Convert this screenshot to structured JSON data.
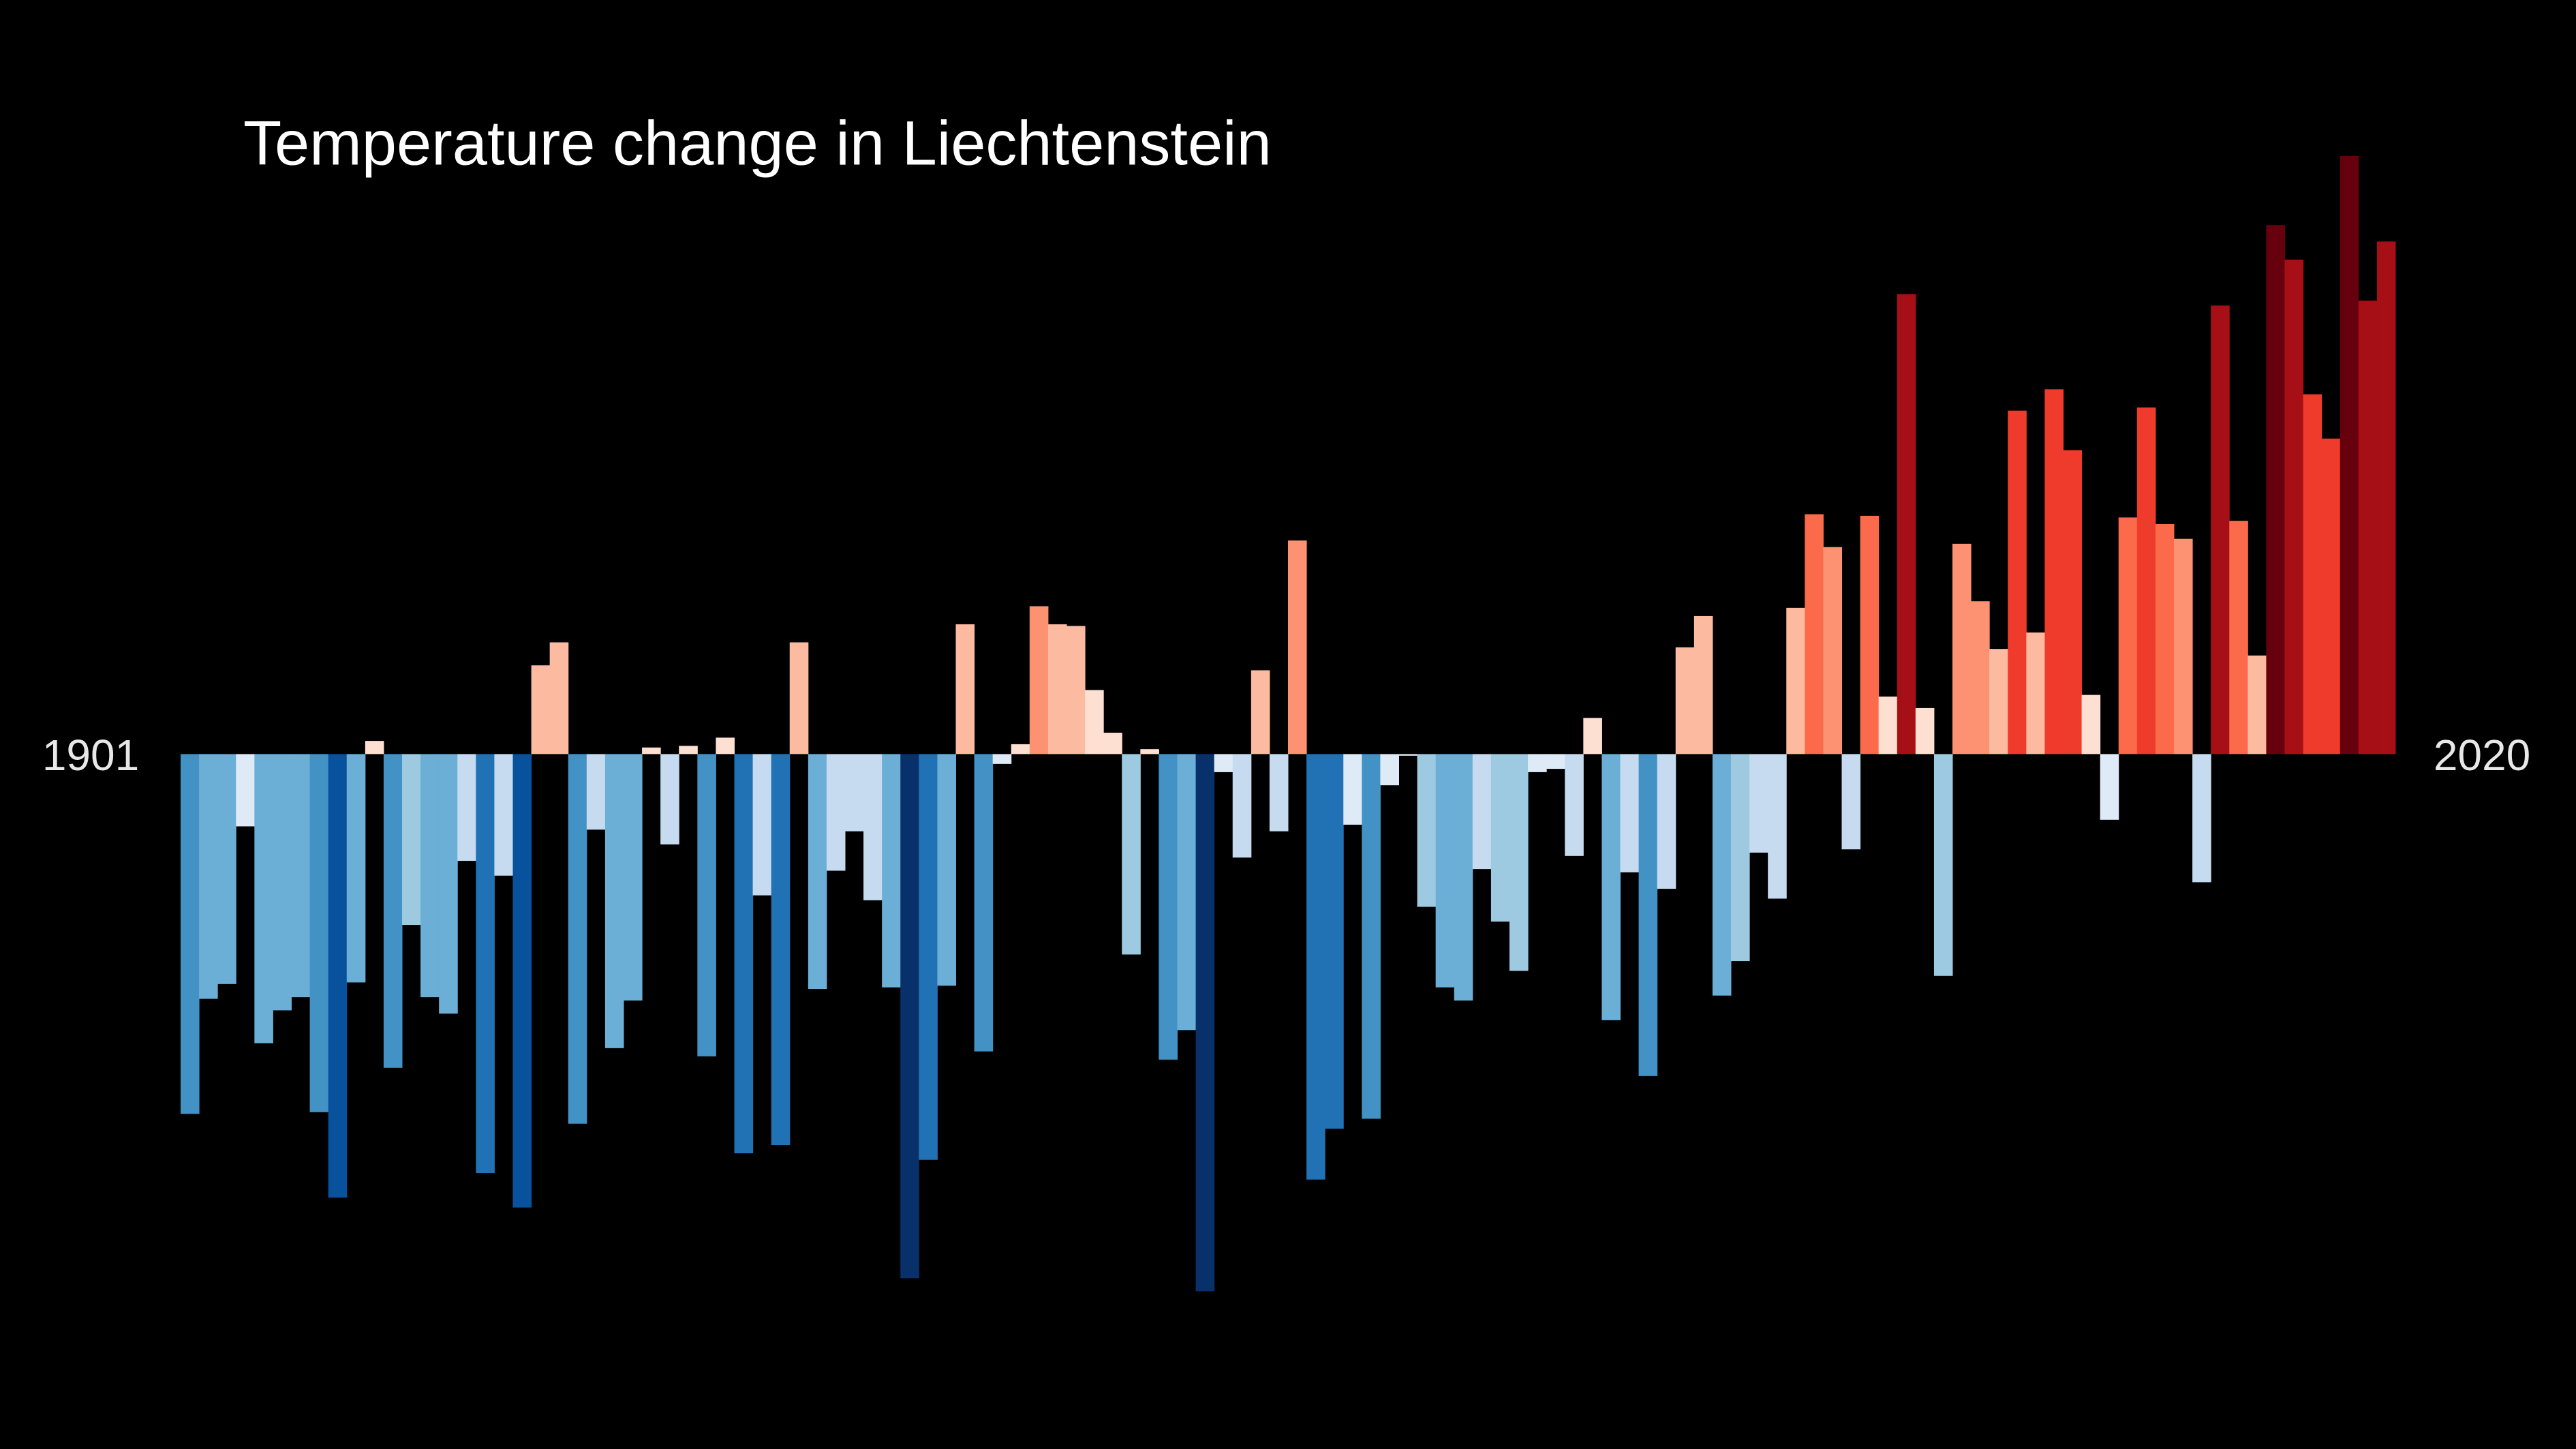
{
  "chart_data": {
    "type": "bar",
    "title": "Temperature change in Liechtenstein",
    "x": [
      1901,
      1902,
      1903,
      1904,
      1905,
      1906,
      1907,
      1908,
      1909,
      1910,
      1911,
      1912,
      1913,
      1914,
      1915,
      1916,
      1917,
      1918,
      1919,
      1920,
      1921,
      1922,
      1923,
      1924,
      1925,
      1926,
      1927,
      1928,
      1929,
      1930,
      1931,
      1932,
      1933,
      1934,
      1935,
      1936,
      1937,
      1938,
      1939,
      1940,
      1941,
      1942,
      1943,
      1944,
      1945,
      1946,
      1947,
      1948,
      1949,
      1950,
      1951,
      1952,
      1953,
      1954,
      1955,
      1956,
      1957,
      1958,
      1959,
      1960,
      1961,
      1962,
      1963,
      1964,
      1965,
      1966,
      1967,
      1968,
      1969,
      1970,
      1971,
      1972,
      1973,
      1974,
      1975,
      1976,
      1977,
      1978,
      1979,
      1980,
      1981,
      1982,
      1983,
      1984,
      1985,
      1986,
      1987,
      1988,
      1989,
      1990,
      1991,
      1992,
      1993,
      1994,
      1995,
      1996,
      1997,
      1998,
      1999,
      2000,
      2001,
      2002,
      2003,
      2004,
      2005,
      2006,
      2007,
      2008,
      2009,
      2010,
      2011,
      2012,
      2013,
      2014,
      2015,
      2016,
      2017,
      2018,
      2019,
      2020
    ],
    "values": [
      -2.19,
      -1.49,
      -1.4,
      -0.44,
      -1.76,
      -1.56,
      -1.48,
      -2.18,
      -2.7,
      -1.39,
      0.08,
      -1.91,
      -1.04,
      -1.48,
      -1.58,
      -0.65,
      -2.55,
      -0.74,
      -2.76,
      0.54,
      0.68,
      -2.25,
      -0.46,
      -1.79,
      -1.5,
      0.04,
      -0.55,
      0.05,
      -1.84,
      0.1,
      -2.43,
      -0.86,
      -2.38,
      0.68,
      -1.43,
      -0.71,
      -0.47,
      -0.89,
      -1.42,
      -3.19,
      -2.47,
      -1.41,
      0.79,
      -1.81,
      -0.06,
      0.06,
      0.9,
      0.79,
      0.78,
      0.39,
      0.13,
      -1.22,
      0.03,
      -1.86,
      -1.68,
      -3.27,
      -0.11,
      -0.63,
      0.51,
      -0.47,
      1.3,
      -2.59,
      -2.28,
      -0.43,
      -2.22,
      -0.19,
      -0.01,
      -0.93,
      -1.42,
      -1.5,
      -0.7,
      -1.02,
      -1.32,
      -0.11,
      -0.09,
      -0.62,
      0.22,
      -1.62,
      -0.72,
      -1.96,
      -0.82,
      0.65,
      0.84,
      -1.47,
      -1.26,
      -0.6,
      -0.88,
      0.89,
      1.46,
      1.26,
      -0.58,
      1.45,
      0.35,
      2.8,
      0.28,
      -1.35,
      1.28,
      0.93,
      0.64,
      2.09,
      0.74,
      2.22,
      1.85,
      0.36,
      -0.4,
      1.44,
      2.11,
      1.4,
      1.31,
      -0.78,
      2.73,
      1.42,
      0.6,
      3.22,
      3.01,
      2.19,
      1.92,
      3.64,
      2.76,
      3.12
    ],
    "xlim": [
      1900.5,
      2020.5
    ],
    "ylim": [
      -4.23,
      4.59
    ],
    "color_range": [
      -3.6,
      3.6
    ],
    "colormap": [
      "#08306b",
      "#08519c",
      "#2171b5",
      "#4292c6",
      "#6baed6",
      "#9ecae1",
      "#c6dbef",
      "#deebf7",
      "#fee0d2",
      "#fcbba1",
      "#fc9272",
      "#fb6a4a",
      "#ef3b2c",
      "#cb181d",
      "#a50f15",
      "#67000d"
    ]
  }
}
